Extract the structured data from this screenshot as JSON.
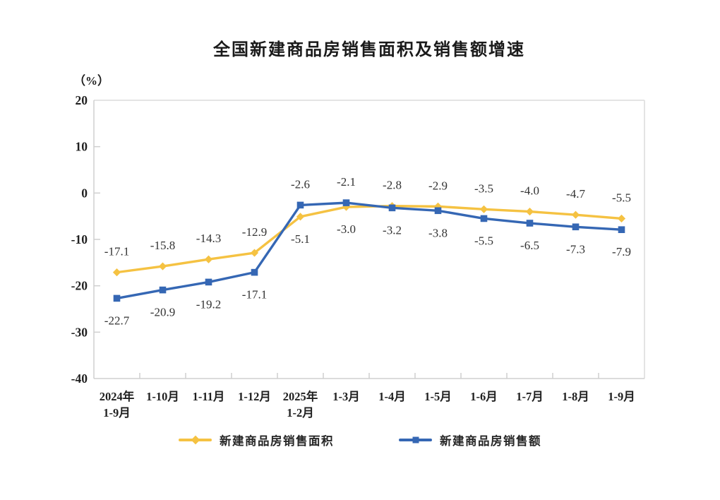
{
  "page": {
    "background": "#ffffff"
  },
  "chart_data": {
    "type": "line",
    "title": "全国新建商品房销售面积及销售额增速",
    "unit_label": "（%）",
    "categories": [
      [
        "2024年",
        "1-9月"
      ],
      [
        "1-10月"
      ],
      [
        "1-11月"
      ],
      [
        "1-12月"
      ],
      [
        "2025年",
        "1-2月"
      ],
      [
        "1-3月"
      ],
      [
        "1-4月"
      ],
      [
        "1-5月"
      ],
      [
        "1-6月"
      ],
      [
        "1-7月"
      ],
      [
        "1-8月"
      ],
      [
        "1-9月"
      ]
    ],
    "series": [
      {
        "name": "新建商品房销售面积",
        "marker": "diamond",
        "color": "#F5C242",
        "values": [
          -17.1,
          -15.8,
          -14.3,
          -12.9,
          -5.1,
          -3.0,
          -2.8,
          -2.9,
          -3.5,
          -4.0,
          -4.7,
          -5.5
        ]
      },
      {
        "name": "新建商品房销售额",
        "marker": "square",
        "color": "#3567B4",
        "values": [
          -22.7,
          -20.9,
          -19.2,
          -17.1,
          -2.6,
          -2.1,
          -3.2,
          -3.8,
          -5.5,
          -6.5,
          -7.3,
          -7.9
        ]
      }
    ],
    "ylim": [
      -40,
      20
    ],
    "yticks": [
      20,
      10,
      0,
      -10,
      -20,
      -30,
      -40
    ],
    "grid": false,
    "legend_position": "bottom",
    "colors": {
      "axis_line": "#cfcfcf",
      "plot_border": "#dcdcdc",
      "tick_text": "#1f1f1f",
      "data_label": "#333333"
    }
  }
}
